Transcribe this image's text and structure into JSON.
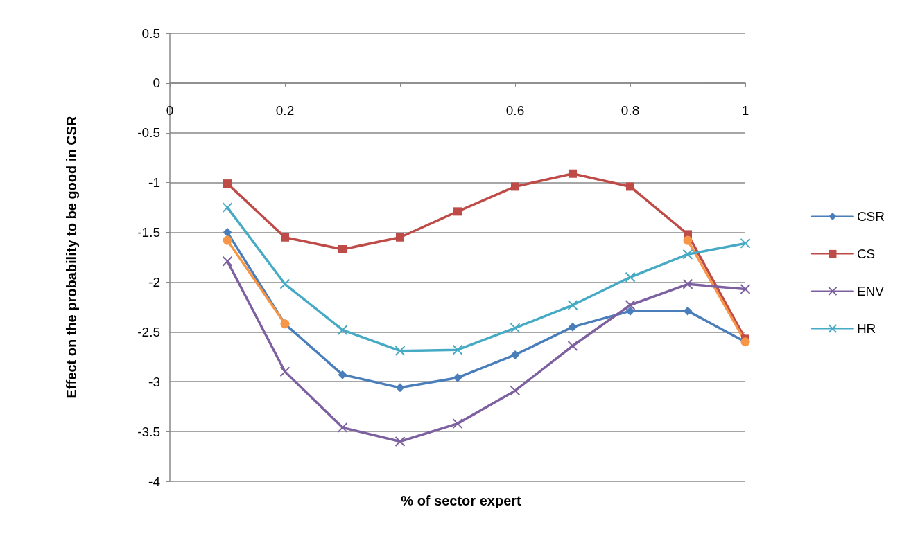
{
  "chart_data": {
    "type": "line",
    "xlabel": "% of sector expert",
    "ylabel": "Effect on the probability to be good in CSR",
    "x": [
      0.1,
      0.2,
      0.3,
      0.4,
      0.5,
      0.6,
      0.7,
      0.8,
      0.9,
      1.0
    ],
    "xlim": [
      0,
      1
    ],
    "xticks": [
      0,
      0.2,
      {
        "value": 0.4,
        "label": null
      },
      0.6,
      0.8,
      1
    ],
    "ylim": [
      -4,
      0.5
    ],
    "yticks": [
      -4,
      -3.5,
      -3,
      -2.5,
      -2,
      -1.5,
      -1,
      -0.5,
      0,
      0.5
    ],
    "grid": "y",
    "legend": "right",
    "line_style": "solid",
    "series": [
      {
        "name": "CSR",
        "color": "#4a7ebb",
        "marker": "diamond",
        "values": [
          -1.5,
          -2.42,
          -2.93,
          -3.06,
          -2.96,
          -2.73,
          -2.45,
          -2.29,
          -2.29,
          -2.6
        ]
      },
      {
        "name": "CS",
        "color": "#be4b48",
        "marker": "square",
        "values": [
          -1.01,
          -1.55,
          -1.67,
          -1.55,
          -1.29,
          -1.04,
          -0.91,
          -1.04,
          -1.52,
          -2.57
        ]
      },
      {
        "color": "#f79646",
        "marker": "circle",
        "values": [
          -1.58,
          -2.42,
          null,
          null,
          null,
          null,
          null,
          null,
          -1.58,
          -2.6
        ]
      },
      {
        "name": "ENV",
        "color": "#7d60a0",
        "marker": "cross",
        "values": [
          -1.79,
          -2.9,
          -3.46,
          -3.6,
          -3.42,
          -3.09,
          -2.64,
          -2.23,
          -2.02,
          -2.07
        ]
      },
      {
        "name": "HR",
        "color": "#46aac5",
        "marker": "cross",
        "values": [
          -1.25,
          -2.02,
          -2.48,
          -2.69,
          -2.68,
          -2.46,
          -2.23,
          -1.95,
          -1.72,
          -1.61
        ]
      }
    ]
  }
}
